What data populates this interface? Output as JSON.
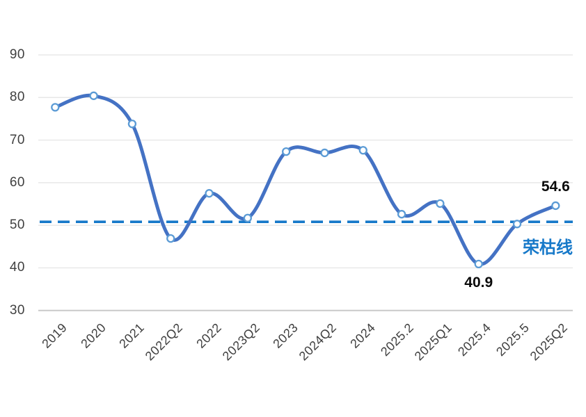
{
  "chart_data": {
    "type": "line",
    "smoothed": true,
    "title": "",
    "xlabel": "",
    "ylabel": "",
    "categories": [
      "2019",
      "2020",
      "2021",
      "2022Q2",
      "2022",
      "2023Q2",
      "2023",
      "2024Q2",
      "2024",
      "2025.2",
      "2025Q1",
      "2025.4",
      "2025.5",
      "2025Q2"
    ],
    "series": [
      {
        "values": [
          77.7,
          80.4,
          73.8,
          46.9,
          57.5,
          51.7,
          67.3,
          67.0,
          67.6,
          52.6,
          55.1,
          40.9,
          50.3,
          54.6
        ],
        "color": "#4472C4",
        "marker_fill": "#FFFFFF",
        "marker_stroke": "#5B9BD5"
      }
    ],
    "ylim": [
      30,
      90
    ],
    "yticks": [
      90,
      80,
      70,
      60,
      50,
      40,
      30
    ],
    "grid": true,
    "legend": "none",
    "reference_line": {
      "value": 50.8,
      "label": "荣枯线",
      "color": "#1779C9",
      "style": "dashed"
    },
    "annotations": [
      {
        "text": "40.9",
        "category": "2025.4",
        "position": "below"
      },
      {
        "text": "54.6",
        "category": "2025Q2",
        "position": "above"
      }
    ]
  },
  "colors": {
    "grid": "#E3E3E3",
    "axis_line": "#C9C9C9",
    "tick_text": "#3F3F3F",
    "annotation_text": "#0A0A0A",
    "background": "#FFFFFF"
  }
}
